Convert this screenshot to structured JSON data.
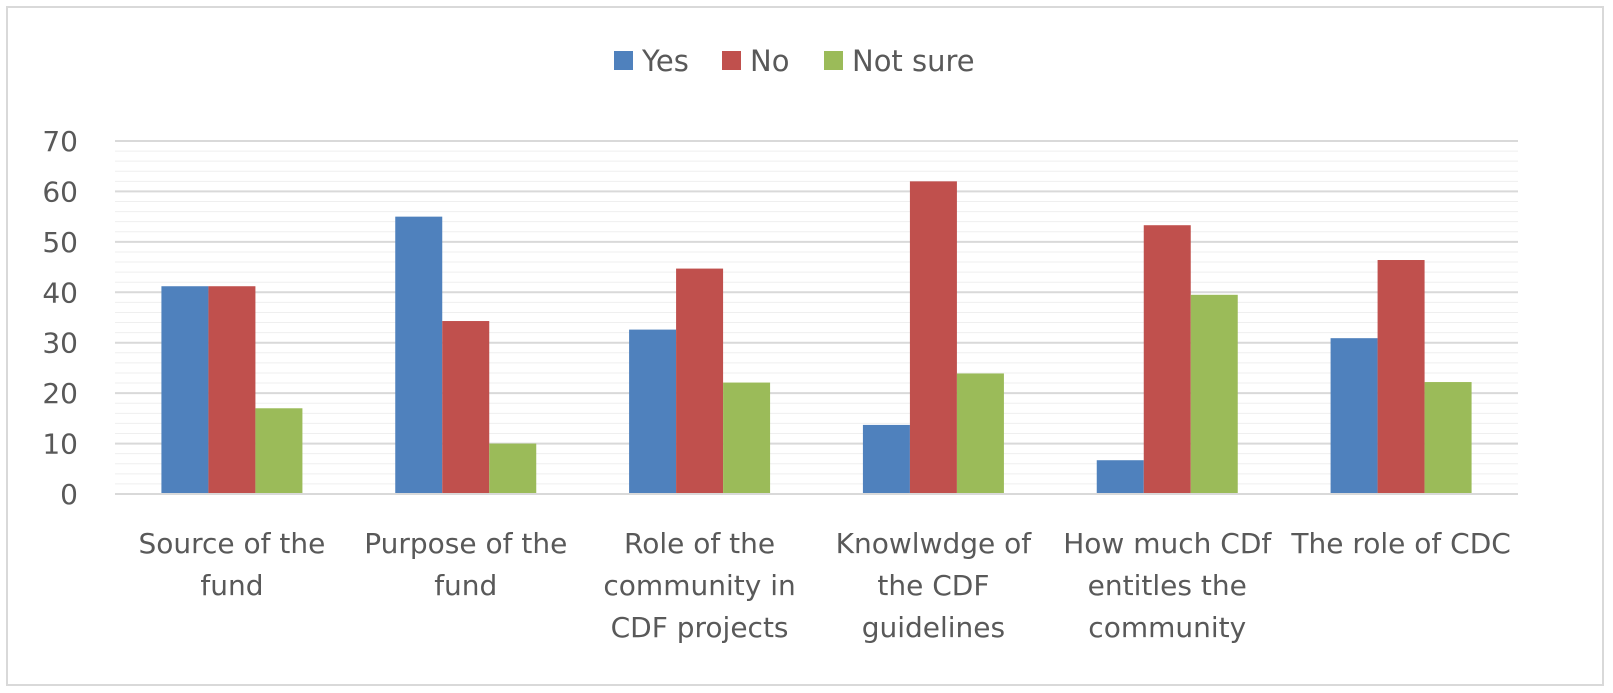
{
  "chart_data": {
    "type": "bar",
    "categories": [
      [
        "Source of the",
        "fund"
      ],
      [
        "Purpose of the",
        "fund"
      ],
      [
        "Role of the",
        "community in",
        "CDF projects"
      ],
      [
        "Knowlwdge of",
        "the CDF",
        "guidelines"
      ],
      [
        "How much CDf",
        "entitles the",
        "community"
      ],
      [
        "The role of CDC"
      ]
    ],
    "series": [
      {
        "name": "Yes",
        "color": "#4f81bd",
        "values": [
          41.2,
          55.0,
          32.6,
          13.7,
          6.7,
          30.9
        ]
      },
      {
        "name": "No",
        "color": "#c0504d",
        "values": [
          41.2,
          34.3,
          44.7,
          62.0,
          53.3,
          46.4
        ]
      },
      {
        "name": "Not sure",
        "color": "#9bbb59",
        "values": [
          17.0,
          10.0,
          22.1,
          23.9,
          39.5,
          22.2
        ]
      }
    ],
    "title": "",
    "xlabel": "",
    "ylabel": "",
    "ylim": [
      0,
      70
    ],
    "yticks": [
      0,
      10,
      20,
      30,
      40,
      50,
      60,
      70
    ],
    "grid": true,
    "legend": "top-center"
  }
}
